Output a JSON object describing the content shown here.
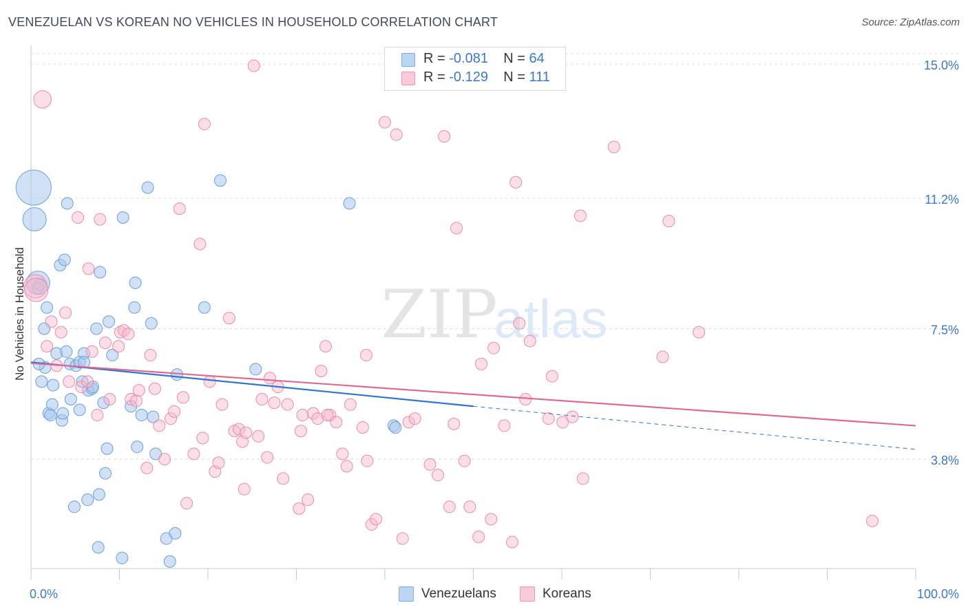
{
  "title": "VENEZUELAN VS KOREAN NO VEHICLES IN HOUSEHOLD CORRELATION CHART",
  "source": "Source: ZipAtlas.com",
  "watermark": {
    "zip": "ZIP",
    "atlas": "atlas"
  },
  "legend": {
    "rows": [
      {
        "r_label": "R =",
        "r_value": "-0.081",
        "n_label": "N =",
        "n_value": "64",
        "color": "#a9c8ee"
      },
      {
        "r_label": "R =",
        "r_value": "-0.129",
        "n_label": "N =",
        "n_value": "111",
        "color": "#f6b8cb"
      }
    ]
  },
  "bottom_legend": {
    "venezuelans": "Venezuelans",
    "koreans": "Koreans"
  },
  "chart_data": {
    "type": "scatter",
    "title": "VENEZUELAN VS KOREAN NO VEHICLES IN HOUSEHOLD CORRELATION CHART",
    "xlabel": "",
    "ylabel": "No Vehicles in Household",
    "x_tick_labels": [
      "0.0%",
      "100.0%"
    ],
    "y_tick_labels": [
      "15.0%",
      "11.2%",
      "7.5%",
      "3.8%"
    ],
    "y_ticks": [
      15.0,
      11.2,
      7.5,
      3.8
    ],
    "xlim": [
      0,
      100
    ],
    "ylim": [
      0.7,
      15.45
    ],
    "grid": true,
    "colors": {
      "venezuelans_fill": "#a9c8ee",
      "venezuelans_stroke": "#6a9fd8",
      "venezuelans_line": "#2f74d0",
      "koreans_fill": "#f6b8cb",
      "koreans_stroke": "#e98aa8",
      "koreans_line": "#e06790",
      "axis_text": "#3a78c9"
    },
    "series": [
      {
        "name": "Venezuelans",
        "trend": {
          "x0": 0,
          "y0": 6.55,
          "x1": 50,
          "y1": 5.3,
          "dash_to_x": 100,
          "dash_to_y": 4.08
        },
        "points": [
          {
            "x": 0.3,
            "y": 11.5,
            "s": 3
          },
          {
            "x": 0.4,
            "y": 10.6,
            "s": 2
          },
          {
            "x": 0.8,
            "y": 8.8,
            "s": 2
          },
          {
            "x": 1.2,
            "y": 6.0
          },
          {
            "x": 1.5,
            "y": 7.5
          },
          {
            "x": 1.6,
            "y": 6.4
          },
          {
            "x": 1.8,
            "y": 8.1
          },
          {
            "x": 2.0,
            "y": 5.1
          },
          {
            "x": 2.2,
            "y": 5.05
          },
          {
            "x": 2.4,
            "y": 5.35
          },
          {
            "x": 2.5,
            "y": 5.9
          },
          {
            "x": 2.9,
            "y": 6.8
          },
          {
            "x": 3.3,
            "y": 9.3
          },
          {
            "x": 3.5,
            "y": 4.9
          },
          {
            "x": 3.6,
            "y": 5.1
          },
          {
            "x": 3.8,
            "y": 9.45
          },
          {
            "x": 4.0,
            "y": 6.85
          },
          {
            "x": 4.1,
            "y": 11.05
          },
          {
            "x": 4.4,
            "y": 6.5
          },
          {
            "x": 4.5,
            "y": 5.5
          },
          {
            "x": 4.9,
            "y": 2.45
          },
          {
            "x": 5.1,
            "y": 6.45
          },
          {
            "x": 5.5,
            "y": 6.55
          },
          {
            "x": 5.5,
            "y": 5.2
          },
          {
            "x": 5.8,
            "y": 6.0
          },
          {
            "x": 6.0,
            "y": 6.8
          },
          {
            "x": 6.0,
            "y": 6.55
          },
          {
            "x": 6.4,
            "y": 2.65
          },
          {
            "x": 6.5,
            "y": 5.75
          },
          {
            "x": 6.9,
            "y": 5.8
          },
          {
            "x": 7.0,
            "y": 5.85
          },
          {
            "x": 7.4,
            "y": 7.5
          },
          {
            "x": 7.6,
            "y": 1.3
          },
          {
            "x": 7.7,
            "y": 2.8
          },
          {
            "x": 7.8,
            "y": 9.1
          },
          {
            "x": 8.2,
            "y": 5.4
          },
          {
            "x": 8.4,
            "y": 3.4
          },
          {
            "x": 8.6,
            "y": 4.1
          },
          {
            "x": 8.8,
            "y": 7.7
          },
          {
            "x": 9.2,
            "y": 6.75
          },
          {
            "x": 10.3,
            "y": 1.0
          },
          {
            "x": 10.4,
            "y": 10.65
          },
          {
            "x": 11.3,
            "y": 5.3
          },
          {
            "x": 11.7,
            "y": 8.1
          },
          {
            "x": 11.8,
            "y": 8.8
          },
          {
            "x": 12.0,
            "y": 4.15
          },
          {
            "x": 12.5,
            "y": 5.05
          },
          {
            "x": 13.2,
            "y": 11.5
          },
          {
            "x": 13.6,
            "y": 7.65
          },
          {
            "x": 13.8,
            "y": 5.0
          },
          {
            "x": 14.1,
            "y": 3.95
          },
          {
            "x": 15.3,
            "y": 1.55
          },
          {
            "x": 15.7,
            "y": 0.9
          },
          {
            "x": 16.3,
            "y": 1.7
          },
          {
            "x": 16.5,
            "y": 6.2
          },
          {
            "x": 19.6,
            "y": 8.1
          },
          {
            "x": 21.4,
            "y": 11.7
          },
          {
            "x": 25.4,
            "y": 6.35
          },
          {
            "x": 36.0,
            "y": 11.05
          },
          {
            "x": 41.0,
            "y": 4.75
          },
          {
            "x": 41.2,
            "y": 4.7
          },
          {
            "x": 0.8,
            "y": 8.65
          },
          {
            "x": 1.0,
            "y": 8.75
          },
          {
            "x": 0.9,
            "y": 6.5
          }
        ]
      },
      {
        "name": "Koreans",
        "trend": {
          "x0": 0,
          "y0": 6.52,
          "x1": 100,
          "y1": 4.75
        },
        "points": [
          {
            "x": 0.5,
            "y": 8.7,
            "s": 2
          },
          {
            "x": 0.6,
            "y": 8.6,
            "s": 2
          },
          {
            "x": 1.3,
            "y": 14.0,
            "s": 1.5
          },
          {
            "x": 1.8,
            "y": 7.0
          },
          {
            "x": 2.3,
            "y": 7.7
          },
          {
            "x": 2.9,
            "y": 6.45
          },
          {
            "x": 3.4,
            "y": 7.4
          },
          {
            "x": 3.9,
            "y": 7.95
          },
          {
            "x": 4.3,
            "y": 6.0
          },
          {
            "x": 5.3,
            "y": 10.65
          },
          {
            "x": 5.7,
            "y": 5.85
          },
          {
            "x": 6.4,
            "y": 6.0
          },
          {
            "x": 6.5,
            "y": 9.2
          },
          {
            "x": 6.9,
            "y": 6.85
          },
          {
            "x": 7.5,
            "y": 5.05
          },
          {
            "x": 7.8,
            "y": 10.6
          },
          {
            "x": 8.4,
            "y": 7.1
          },
          {
            "x": 8.9,
            "y": 5.5
          },
          {
            "x": 9.9,
            "y": 7.0
          },
          {
            "x": 10.1,
            "y": 7.4
          },
          {
            "x": 10.5,
            "y": 7.45
          },
          {
            "x": 11.0,
            "y": 7.35
          },
          {
            "x": 11.3,
            "y": 5.5
          },
          {
            "x": 11.9,
            "y": 5.45
          },
          {
            "x": 12.2,
            "y": 5.75
          },
          {
            "x": 13.1,
            "y": 3.55
          },
          {
            "x": 13.5,
            "y": 6.75
          },
          {
            "x": 14.0,
            "y": 5.8
          },
          {
            "x": 14.5,
            "y": 4.75
          },
          {
            "x": 15.1,
            "y": 3.8
          },
          {
            "x": 15.8,
            "y": 4.95
          },
          {
            "x": 16.2,
            "y": 5.15
          },
          {
            "x": 16.8,
            "y": 10.9
          },
          {
            "x": 17.2,
            "y": 5.55
          },
          {
            "x": 17.6,
            "y": 2.55
          },
          {
            "x": 18.4,
            "y": 3.95
          },
          {
            "x": 19.1,
            "y": 9.9
          },
          {
            "x": 19.4,
            "y": 4.4
          },
          {
            "x": 19.6,
            "y": 13.3
          },
          {
            "x": 20.2,
            "y": 6.0
          },
          {
            "x": 20.8,
            "y": 3.45
          },
          {
            "x": 21.2,
            "y": 3.7
          },
          {
            "x": 21.6,
            "y": 5.35
          },
          {
            "x": 22.4,
            "y": 7.8
          },
          {
            "x": 23.0,
            "y": 4.6
          },
          {
            "x": 23.5,
            "y": 4.65
          },
          {
            "x": 23.9,
            "y": 4.3
          },
          {
            "x": 24.1,
            "y": 2.95
          },
          {
            "x": 24.3,
            "y": 4.55
          },
          {
            "x": 25.2,
            "y": 14.95
          },
          {
            "x": 25.7,
            "y": 4.45
          },
          {
            "x": 26.1,
            "y": 5.5
          },
          {
            "x": 26.7,
            "y": 3.85
          },
          {
            "x": 27.0,
            "y": 6.1
          },
          {
            "x": 27.5,
            "y": 5.4
          },
          {
            "x": 27.9,
            "y": 5.85
          },
          {
            "x": 28.5,
            "y": 3.25
          },
          {
            "x": 29.0,
            "y": 5.35
          },
          {
            "x": 30.3,
            "y": 2.4
          },
          {
            "x": 30.5,
            "y": 4.6
          },
          {
            "x": 30.7,
            "y": 5.05
          },
          {
            "x": 31.3,
            "y": 2.65
          },
          {
            "x": 31.9,
            "y": 5.1
          },
          {
            "x": 32.4,
            "y": 4.95
          },
          {
            "x": 32.8,
            "y": 6.3
          },
          {
            "x": 33.3,
            "y": 7.0
          },
          {
            "x": 33.8,
            "y": 5.05
          },
          {
            "x": 34.5,
            "y": 4.85
          },
          {
            "x": 35.2,
            "y": 3.95
          },
          {
            "x": 35.7,
            "y": 3.6
          },
          {
            "x": 36.1,
            "y": 5.35
          },
          {
            "x": 37.5,
            "y": 4.7
          },
          {
            "x": 37.9,
            "y": 6.75
          },
          {
            "x": 38.0,
            "y": 3.75
          },
          {
            "x": 38.5,
            "y": 1.95
          },
          {
            "x": 39.0,
            "y": 2.1
          },
          {
            "x": 40.0,
            "y": 13.35
          },
          {
            "x": 41.3,
            "y": 13.0
          },
          {
            "x": 42.0,
            "y": 1.55
          },
          {
            "x": 42.7,
            "y": 4.85
          },
          {
            "x": 43.4,
            "y": 4.95
          },
          {
            "x": 45.1,
            "y": 3.65
          },
          {
            "x": 46.0,
            "y": 3.35
          },
          {
            "x": 46.7,
            "y": 12.95
          },
          {
            "x": 47.3,
            "y": 2.45
          },
          {
            "x": 47.8,
            "y": 4.8
          },
          {
            "x": 48.1,
            "y": 10.35
          },
          {
            "x": 49.0,
            "y": 3.75
          },
          {
            "x": 49.6,
            "y": 2.45
          },
          {
            "x": 50.6,
            "y": 1.6
          },
          {
            "x": 50.9,
            "y": 6.5
          },
          {
            "x": 52.0,
            "y": 2.1
          },
          {
            "x": 52.3,
            "y": 6.95
          },
          {
            "x": 53.5,
            "y": 4.75
          },
          {
            "x": 54.4,
            "y": 1.45
          },
          {
            "x": 54.8,
            "y": 11.65
          },
          {
            "x": 55.2,
            "y": 7.65
          },
          {
            "x": 55.9,
            "y": 5.5
          },
          {
            "x": 56.4,
            "y": 7.15
          },
          {
            "x": 58.5,
            "y": 4.95
          },
          {
            "x": 58.9,
            "y": 6.15
          },
          {
            "x": 60.1,
            "y": 4.85
          },
          {
            "x": 61.2,
            "y": 5.0
          },
          {
            "x": 62.1,
            "y": 10.7
          },
          {
            "x": 62.4,
            "y": 3.25
          },
          {
            "x": 65.9,
            "y": 12.65
          },
          {
            "x": 71.4,
            "y": 6.7
          },
          {
            "x": 72.1,
            "y": 10.55
          },
          {
            "x": 75.5,
            "y": 7.4
          },
          {
            "x": 95.1,
            "y": 2.05
          },
          {
            "x": 33.5,
            "y": 5.05
          }
        ]
      }
    ]
  }
}
